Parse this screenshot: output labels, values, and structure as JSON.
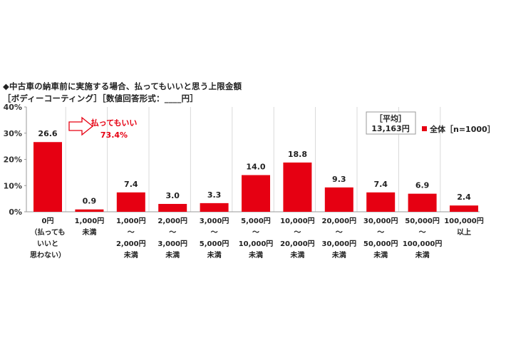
{
  "title": "◆中古車の納車前に実施する場合、払ってもいいと思う上限金額",
  "subtitle": "［ボディーコーティング］［数値回答形式：____円］",
  "callout": {
    "label": "払ってもいい",
    "value": "73.4%"
  },
  "average": {
    "label": "［平均］",
    "value": "13,163円"
  },
  "legend": {
    "marker": "■",
    "label": "全体［n=1000］"
  },
  "colors": {
    "bar": "#e60012",
    "grid": "#d9d9d9",
    "callout": "#e60012"
  },
  "chart_data": {
    "type": "bar",
    "ylim": [
      0,
      40
    ],
    "yticks": [
      "0%",
      "10%",
      "20%",
      "30%",
      "40%"
    ],
    "ytick_values": [
      0,
      10,
      20,
      30,
      40
    ],
    "series": [
      {
        "name": "全体［n=1000］",
        "values": [
          26.6,
          0.9,
          7.4,
          3.0,
          3.3,
          14.0,
          18.8,
          9.3,
          7.4,
          6.9,
          2.4
        ]
      }
    ],
    "value_labels": [
      "26.6",
      "0.9",
      "7.4",
      "3.0",
      "3.3",
      "14.0",
      "18.8",
      "9.3",
      "7.4",
      "6.9",
      "2.4"
    ],
    "categories": [
      [
        "0円",
        "（払っても",
        "いいと",
        "思わない）"
      ],
      [
        "1,000円",
        "未満"
      ],
      [
        "1,000円",
        "～",
        "2,000円",
        "未満"
      ],
      [
        "2,000円",
        "～",
        "3,000円",
        "未満"
      ],
      [
        "3,000円",
        "～",
        "5,000円",
        "未満"
      ],
      [
        "5,000円",
        "～",
        "10,000円",
        "未満"
      ],
      [
        "10,000円",
        "～",
        "20,000円",
        "未満"
      ],
      [
        "20,000円",
        "～",
        "30,000円",
        "未満"
      ],
      [
        "30,000円",
        "～",
        "50,000円",
        "未満"
      ],
      [
        "50,000円",
        "～",
        "100,000円",
        "未満"
      ],
      [
        "100,000円",
        "以上"
      ]
    ]
  }
}
